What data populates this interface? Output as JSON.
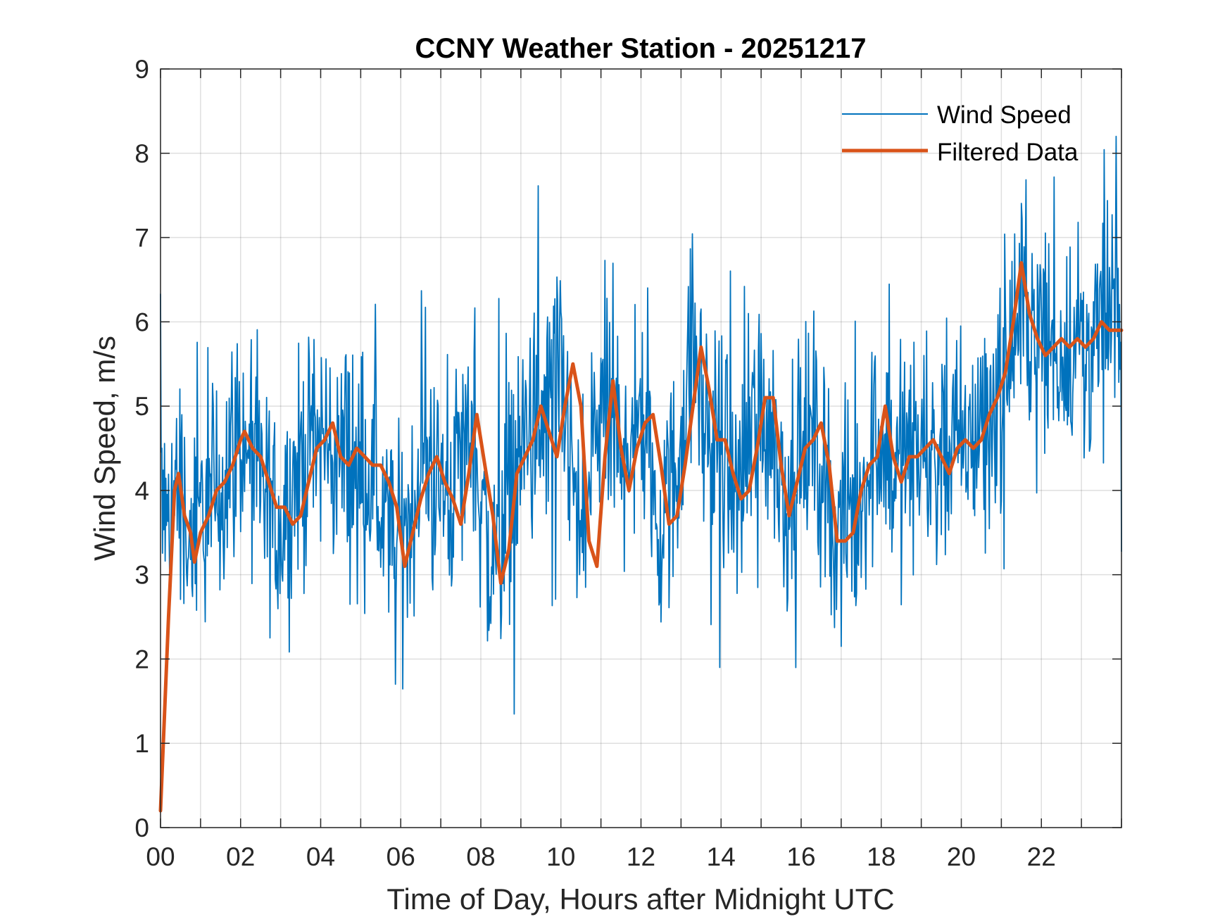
{
  "chart_data": {
    "type": "line",
    "title": "CCNY Weather Station - 20251217",
    "xlabel": "Time of Day, Hours after Midnight UTC",
    "ylabel": "Wind Speed, m/s",
    "xlim": [
      0,
      24
    ],
    "ylim": [
      0,
      9
    ],
    "grid": true,
    "legend_position": "top-right",
    "x_tick_values": [
      0,
      2,
      4,
      6,
      8,
      10,
      12,
      14,
      16,
      18,
      20,
      22
    ],
    "x_tick_labels": [
      "00",
      "02",
      "04",
      "06",
      "08",
      "10",
      "12",
      "14",
      "16",
      "18",
      "20",
      "22"
    ],
    "y_tick_values": [
      0,
      1,
      2,
      3,
      4,
      5,
      6,
      7,
      8,
      9
    ],
    "y_tick_labels": [
      "0",
      "1",
      "2",
      "3",
      "4",
      "5",
      "6",
      "7",
      "8",
      "9"
    ],
    "series": [
      {
        "name": "Wind Speed",
        "color": "#0072BD",
        "style": "thin-noisy",
        "noise_amplitude": 1.0,
        "x": [
          0,
          0.1,
          0.2,
          0.3,
          0.45,
          0.6,
          0.75,
          0.9,
          1.0,
          1.2,
          1.5,
          1.8,
          2.0,
          2.3,
          2.6,
          3.0,
          3.3,
          3.6,
          4.1,
          4.4,
          4.8,
          5.2,
          5.6,
          5.9,
          6.3,
          6.7,
          7.1,
          7.5,
          7.8,
          8.2,
          8.5,
          8.8,
          9.1,
          9.5,
          9.9,
          10.2,
          10.5,
          10.8,
          11.1,
          11.4,
          11.7,
          12.0,
          12.4,
          12.8,
          13.1,
          13.3,
          13.6,
          14.0,
          14.4,
          14.8,
          15.0,
          15.3,
          15.6,
          15.9,
          16.3,
          16.6,
          16.9,
          17.3,
          17.7,
          18.0,
          18.3,
          18.7,
          19.1,
          19.5,
          19.9,
          20.3,
          20.7,
          21.0,
          21.3,
          21.6,
          21.9,
          22.2,
          22.6,
          23.0,
          23.4,
          23.7,
          24.0
        ],
        "values": [
          4.2,
          3.6,
          3.8,
          3.9,
          4.1,
          3.7,
          3.3,
          3.3,
          3.7,
          3.9,
          4.0,
          4.6,
          4.5,
          4.2,
          3.8,
          3.6,
          4.0,
          4.4,
          4.6,
          4.4,
          4.4,
          4.2,
          3.6,
          3.1,
          3.9,
          4.3,
          3.9,
          4.4,
          4.8,
          3.1,
          3.4,
          4.3,
          4.7,
          4.6,
          5.3,
          4.6,
          3.2,
          4.5,
          5.1,
          4.2,
          4.8,
          4.8,
          3.7,
          4.0,
          5.1,
          5.7,
          4.8,
          4.4,
          4.0,
          4.6,
          5.1,
          4.7,
          3.9,
          4.4,
          4.6,
          4.2,
          3.5,
          3.7,
          4.3,
          4.8,
          4.3,
          4.4,
          4.5,
          4.5,
          4.5,
          4.6,
          4.9,
          5.3,
          5.8,
          6.3,
          5.9,
          5.7,
          5.7,
          5.8,
          5.8,
          5.9,
          5.9
        ]
      },
      {
        "name": "Filtered Data",
        "color": "#D95319",
        "style": "thick",
        "x": [
          0,
          0.2,
          0.35,
          0.45,
          0.6,
          0.75,
          0.85,
          1.0,
          1.2,
          1.4,
          1.6,
          1.8,
          2.0,
          2.1,
          2.3,
          2.5,
          2.7,
          2.9,
          3.1,
          3.3,
          3.5,
          3.7,
          3.9,
          4.1,
          4.3,
          4.5,
          4.7,
          4.9,
          5.1,
          5.3,
          5.5,
          5.7,
          5.9,
          6.1,
          6.3,
          6.5,
          6.7,
          6.9,
          7.1,
          7.3,
          7.5,
          7.7,
          7.9,
          8.1,
          8.3,
          8.5,
          8.7,
          8.9,
          9.1,
          9.3,
          9.5,
          9.7,
          9.9,
          10.1,
          10.3,
          10.5,
          10.7,
          10.9,
          11.1,
          11.3,
          11.5,
          11.7,
          11.9,
          12.1,
          12.3,
          12.5,
          12.7,
          12.9,
          13.1,
          13.3,
          13.5,
          13.7,
          13.9,
          14.1,
          14.3,
          14.5,
          14.7,
          14.9,
          15.1,
          15.3,
          15.5,
          15.7,
          15.9,
          16.1,
          16.3,
          16.5,
          16.7,
          16.9,
          17.1,
          17.3,
          17.5,
          17.7,
          17.9,
          18.1,
          18.3,
          18.5,
          18.7,
          18.9,
          19.1,
          19.3,
          19.5,
          19.7,
          19.9,
          20.1,
          20.3,
          20.5,
          20.7,
          20.9,
          21.1,
          21.3,
          21.5,
          21.7,
          21.9,
          22.1,
          22.3,
          22.5,
          22.7,
          22.9,
          23.1,
          23.3,
          23.5,
          23.7,
          23.9,
          24.0
        ],
        "values": [
          0.2,
          2.5,
          4.0,
          4.2,
          3.7,
          3.5,
          3.15,
          3.5,
          3.7,
          4.0,
          4.1,
          4.3,
          4.6,
          4.7,
          4.5,
          4.4,
          4.1,
          3.8,
          3.8,
          3.6,
          3.7,
          4.1,
          4.5,
          4.6,
          4.8,
          4.4,
          4.3,
          4.5,
          4.4,
          4.3,
          4.3,
          4.1,
          3.8,
          3.1,
          3.5,
          3.9,
          4.2,
          4.4,
          4.1,
          3.9,
          3.6,
          4.2,
          4.9,
          4.3,
          3.7,
          2.9,
          3.3,
          4.2,
          4.4,
          4.6,
          5.0,
          4.7,
          4.4,
          5.0,
          5.5,
          5.0,
          3.4,
          3.1,
          4.4,
          5.3,
          4.5,
          4.0,
          4.5,
          4.8,
          4.9,
          4.3,
          3.6,
          3.7,
          4.3,
          5.0,
          5.7,
          5.2,
          4.6,
          4.6,
          4.2,
          3.9,
          4.0,
          4.5,
          5.1,
          5.1,
          4.3,
          3.7,
          4.1,
          4.5,
          4.6,
          4.8,
          4.3,
          3.4,
          3.4,
          3.5,
          4.0,
          4.3,
          4.4,
          5.0,
          4.4,
          4.1,
          4.4,
          4.4,
          4.5,
          4.6,
          4.4,
          4.2,
          4.5,
          4.6,
          4.5,
          4.6,
          4.9,
          5.1,
          5.4,
          6.0,
          6.7,
          6.1,
          5.8,
          5.6,
          5.7,
          5.8,
          5.7,
          5.8,
          5.7,
          5.8,
          6.0,
          5.9,
          5.9,
          5.9
        ]
      }
    ]
  }
}
